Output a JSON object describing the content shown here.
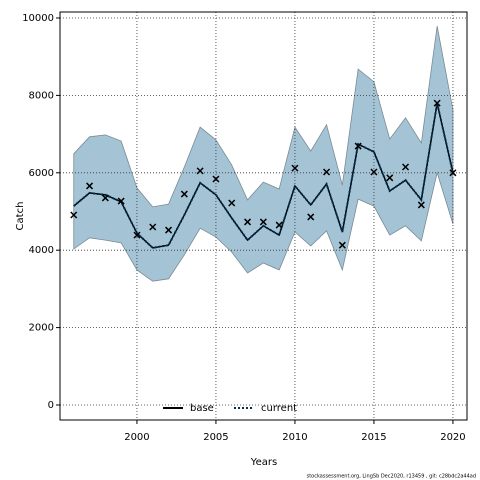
{
  "chart_data": {
    "type": "line",
    "x_label": "Years",
    "y_label": "Catch",
    "note": "stockassessment.org, LingSb Dec2020, r13459 , git: c28bdc2a44ad",
    "x": [
      1996,
      1997,
      1998,
      1999,
      2000,
      2001,
      2002,
      2003,
      2004,
      2005,
      2006,
      2007,
      2008,
      2009,
      2010,
      2011,
      2012,
      2013,
      2014,
      2015,
      2016,
      2017,
      2018,
      2019,
      2020
    ],
    "series": [
      {
        "name": "base",
        "color": "#000000",
        "dash": "solid",
        "values": [
          5140,
          5480,
          5430,
          5250,
          4440,
          4060,
          4130,
          4910,
          5740,
          5430,
          4830,
          4260,
          4630,
          4390,
          5660,
          5170,
          5710,
          4470,
          6740,
          6540,
          5530,
          5810,
          5300,
          7800,
          6000
        ]
      },
      {
        "name": "current",
        "color": "#000000",
        "dash": "dotted",
        "values": [
          5140,
          5480,
          5430,
          5250,
          4440,
          4060,
          4130,
          4910,
          5740,
          5430,
          4830,
          4260,
          4630,
          4390,
          5660,
          5170,
          5710,
          4470,
          6740,
          6540,
          5530,
          5810,
          5300,
          7800,
          6000
        ]
      }
    ],
    "band": {
      "color": "#a4c4d6",
      "upper": [
        6490,
        6930,
        6980,
        6820,
        5610,
        5120,
        5190,
        6150,
        7180,
        6850,
        6200,
        5300,
        5760,
        5580,
        7180,
        6560,
        7240,
        5680,
        8680,
        8350,
        6870,
        7420,
        6770,
        9790,
        7620
      ],
      "lower": [
        4030,
        4320,
        4260,
        4190,
        3490,
        3200,
        3260,
        3880,
        4570,
        4340,
        3950,
        3410,
        3670,
        3490,
        4470,
        4110,
        4500,
        3490,
        5320,
        5140,
        4390,
        4630,
        4240,
        6000,
        4680
      ]
    },
    "observed": [
      4910,
      5660,
      5350,
      5270,
      4390,
      4600,
      4520,
      5450,
      6050,
      5840,
      5220,
      4730,
      4730,
      4650,
      6120,
      4860,
      6020,
      4130,
      6690,
      6020,
      5870,
      6150,
      5170,
      7800,
      6000
    ],
    "xlim": [
      1995.13,
      2020.89
    ],
    "ylim": [
      -388,
      10155
    ],
    "xticks": [
      2000,
      2005,
      2010,
      2015,
      2020
    ],
    "yticks": [
      0,
      2000,
      4000,
      6000,
      8000,
      10000
    ],
    "grid": true,
    "legend": "bottom"
  }
}
